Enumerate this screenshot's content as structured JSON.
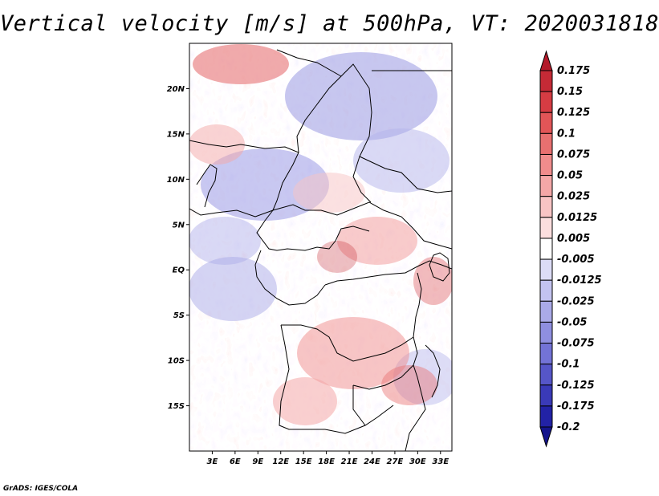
{
  "title": "Vertical velocity [m/s] at 500hPa, VT: 2020031818",
  "credit": "GrADS: IGES/COLA",
  "map": {
    "lat_labels": [
      "20N",
      "15N",
      "10N",
      "5N",
      "EQ",
      "5S",
      "10S",
      "15S"
    ],
    "lon_labels": [
      "3E",
      "6E",
      "9E",
      "12E",
      "15E",
      "18E",
      "21E",
      "24E",
      "27E",
      "30E",
      "33E"
    ],
    "lon_range": [
      0,
      34.5
    ],
    "lat_range": [
      -20,
      25
    ]
  },
  "colorbar": {
    "levels": [
      "0.175",
      "0.15",
      "0.125",
      "0.1",
      "0.075",
      "0.05",
      "0.025",
      "0.0125",
      "0.005",
      "-0.005",
      "-0.0125",
      "-0.025",
      "-0.05",
      "-0.075",
      "-0.1",
      "-0.125",
      "-0.175",
      "-0.2"
    ],
    "colors": [
      "#b3192a",
      "#c52a36",
      "#d63c43",
      "#e25557",
      "#e87070",
      "#f08c8c",
      "#f4a7a7",
      "#f8c4c4",
      "#fbdede",
      "#ffffff",
      "#dcdcf6",
      "#c3c3f0",
      "#aaaae8",
      "#8f8fe0",
      "#7373d6",
      "#5656c8",
      "#3a3ab8",
      "#2222a6",
      "#14148c"
    ]
  }
}
